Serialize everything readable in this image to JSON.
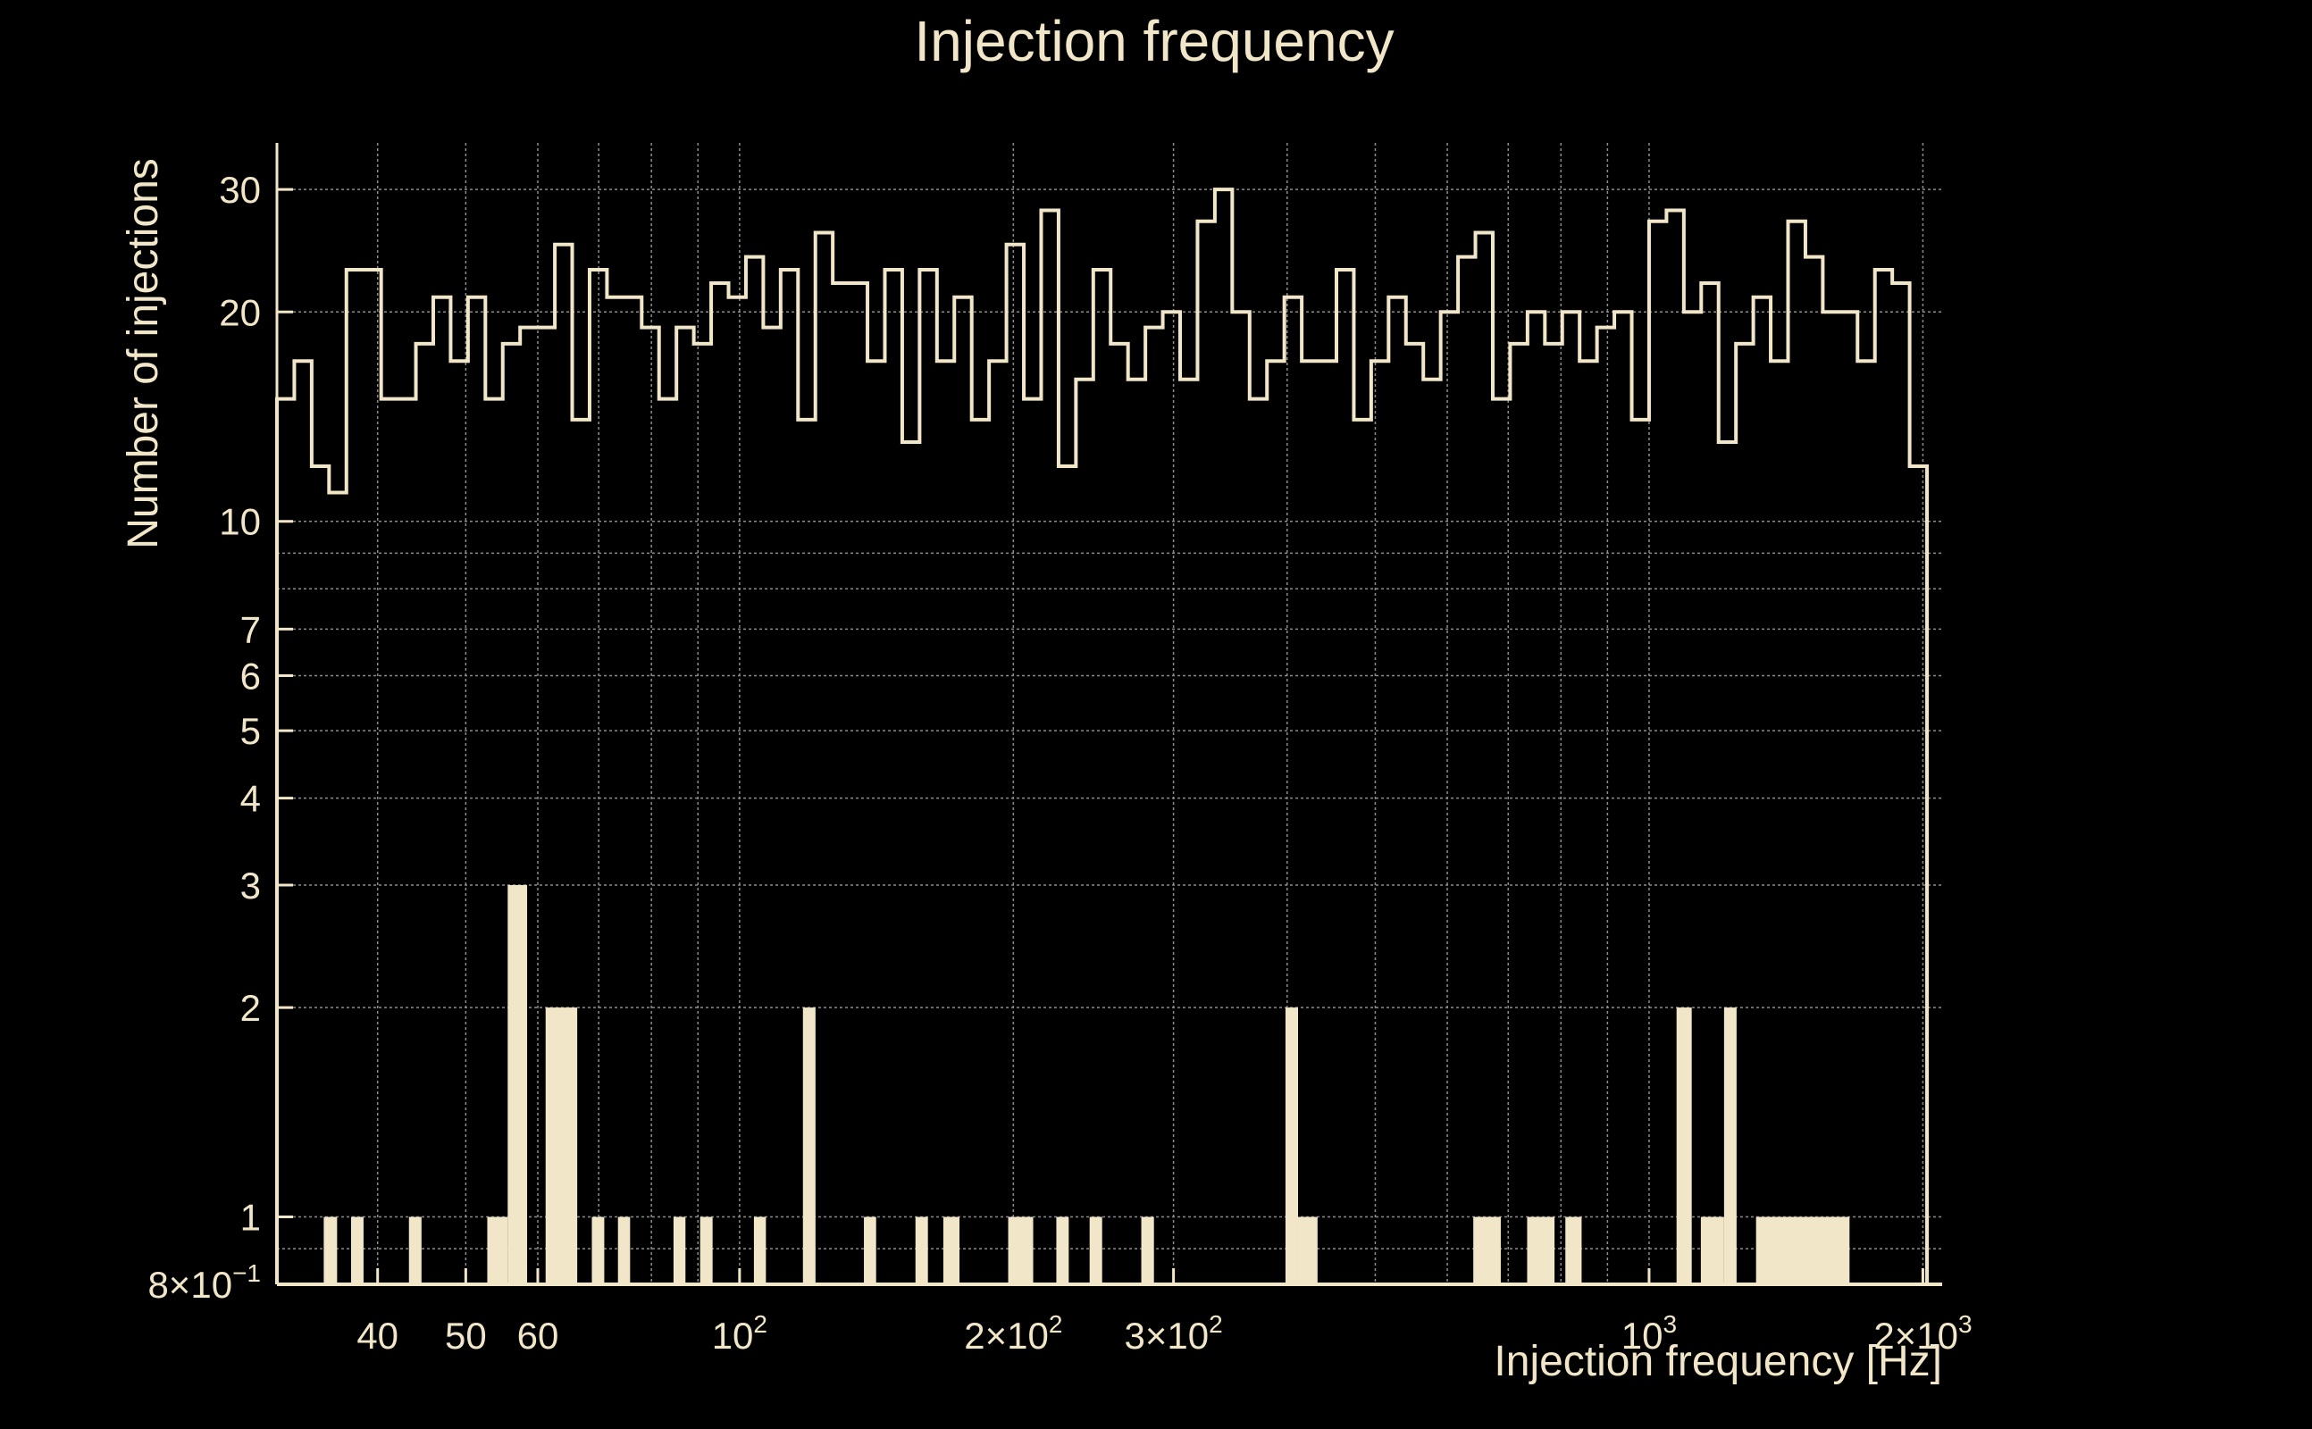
{
  "colors": {
    "background": "#000000",
    "foreground": "#f2e6c8",
    "grid": "#8c8c8c"
  },
  "chart_data": {
    "type": "bar",
    "title": "Injection frequency",
    "xlabel": "Injection frequency [Hz]",
    "ylabel": "Number of injections",
    "xscale": "log",
    "yscale": "log",
    "xlim": [
      31,
      2100
    ],
    "ylim": [
      0.8,
      35
    ],
    "grid": true,
    "legend": "none",
    "xticks": [
      {
        "value": 40,
        "label": "40",
        "sup": ""
      },
      {
        "value": 50,
        "label": "50",
        "sup": ""
      },
      {
        "value": 60,
        "label": "60",
        "sup": ""
      },
      {
        "value": 100,
        "label": "10",
        "sup": "2"
      },
      {
        "value": 200,
        "label": "2×10",
        "sup": "2"
      },
      {
        "value": 300,
        "label": "3×10",
        "sup": "2"
      },
      {
        "value": 1000,
        "label": "10",
        "sup": "3"
      },
      {
        "value": 2000,
        "label": "2×10",
        "sup": "3"
      }
    ],
    "xgrid_values": [
      40,
      50,
      60,
      70,
      80,
      90,
      100,
      200,
      300,
      400,
      500,
      600,
      700,
      800,
      900,
      1000,
      2000
    ],
    "yticks": [
      {
        "value": 0.8,
        "label": "8×10",
        "sup": "−1"
      },
      {
        "value": 1,
        "label": "1",
        "sup": ""
      },
      {
        "value": 2,
        "label": "2",
        "sup": ""
      },
      {
        "value": 3,
        "label": "3",
        "sup": ""
      },
      {
        "value": 4,
        "label": "4",
        "sup": ""
      },
      {
        "value": 5,
        "label": "5",
        "sup": ""
      },
      {
        "value": 6,
        "label": "6",
        "sup": ""
      },
      {
        "value": 7,
        "label": "7",
        "sup": ""
      },
      {
        "value": 10,
        "label": "10",
        "sup": ""
      },
      {
        "value": 20,
        "label": "20",
        "sup": ""
      },
      {
        "value": 30,
        "label": "30",
        "sup": ""
      }
    ],
    "ygrid_values": [
      0.9,
      1,
      2,
      3,
      4,
      5,
      6,
      7,
      8,
      9,
      10,
      20,
      30
    ],
    "series": [
      {
        "style": "step",
        "x_start": 31,
        "x_end": 2021,
        "values": [
          15,
          17,
          12,
          11,
          23,
          23,
          15,
          15,
          18,
          21,
          17,
          21,
          15,
          18,
          19,
          19,
          25,
          14,
          23,
          21,
          21,
          19,
          15,
          19,
          18,
          22,
          21,
          24,
          19,
          23,
          14,
          26,
          22,
          22,
          17,
          23,
          13,
          23,
          17,
          21,
          14,
          17,
          25,
          15,
          28,
          12,
          16,
          23,
          18,
          16,
          19,
          20,
          16,
          27,
          30,
          20,
          15,
          17,
          21,
          17,
          17,
          23,
          14,
          17,
          21,
          18,
          16,
          20,
          24,
          26,
          15,
          18,
          20,
          18,
          20,
          17,
          19,
          20,
          14,
          27,
          28,
          20,
          22,
          13,
          18,
          21,
          17,
          27,
          24,
          20,
          20,
          17,
          23,
          22,
          12
        ]
      },
      {
        "style": "filled",
        "bars": [
          {
            "x0": 34.9,
            "x1": 36.1,
            "value": 1
          },
          {
            "x0": 37.4,
            "x1": 38.6,
            "value": 1
          },
          {
            "x0": 43.3,
            "x1": 44.7,
            "value": 1
          },
          {
            "x0": 52.8,
            "x1": 55.6,
            "value": 1
          },
          {
            "x0": 55.6,
            "x1": 58.4,
            "value": 3
          },
          {
            "x0": 61.2,
            "x1": 66.3,
            "value": 2
          },
          {
            "x0": 68.8,
            "x1": 71.0,
            "value": 1
          },
          {
            "x0": 73.5,
            "x1": 75.8,
            "value": 1
          },
          {
            "x0": 84.6,
            "x1": 87.2,
            "value": 1
          },
          {
            "x0": 90.5,
            "x1": 93.4,
            "value": 1
          },
          {
            "x0": 103.7,
            "x1": 106.9,
            "value": 1
          },
          {
            "x0": 117.4,
            "x1": 121.2,
            "value": 2
          },
          {
            "x0": 137.0,
            "x1": 141.3,
            "value": 1
          },
          {
            "x0": 156.1,
            "x1": 161.1,
            "value": 1
          },
          {
            "x0": 167.5,
            "x1": 174.5,
            "value": 1
          },
          {
            "x0": 197.4,
            "x1": 210.3,
            "value": 1
          },
          {
            "x0": 223.0,
            "x1": 230.1,
            "value": 1
          },
          {
            "x0": 242.6,
            "x1": 250.4,
            "value": 1
          },
          {
            "x0": 276.5,
            "x1": 285.5,
            "value": 1
          },
          {
            "x0": 398.3,
            "x1": 411.2,
            "value": 2
          },
          {
            "x0": 411.2,
            "x1": 432.0,
            "value": 1
          },
          {
            "x0": 640.8,
            "x1": 687.0,
            "value": 1
          },
          {
            "x0": 734.4,
            "x1": 787.1,
            "value": 1
          },
          {
            "x0": 809.0,
            "x1": 843.0,
            "value": 1
          },
          {
            "x0": 1072.0,
            "x1": 1114.0,
            "value": 2
          },
          {
            "x0": 1140.0,
            "x1": 1209.0,
            "value": 1
          },
          {
            "x0": 1209.0,
            "x1": 1248.0,
            "value": 2
          },
          {
            "x0": 1311.0,
            "x1": 1661.0,
            "value": 1
          }
        ]
      }
    ]
  }
}
